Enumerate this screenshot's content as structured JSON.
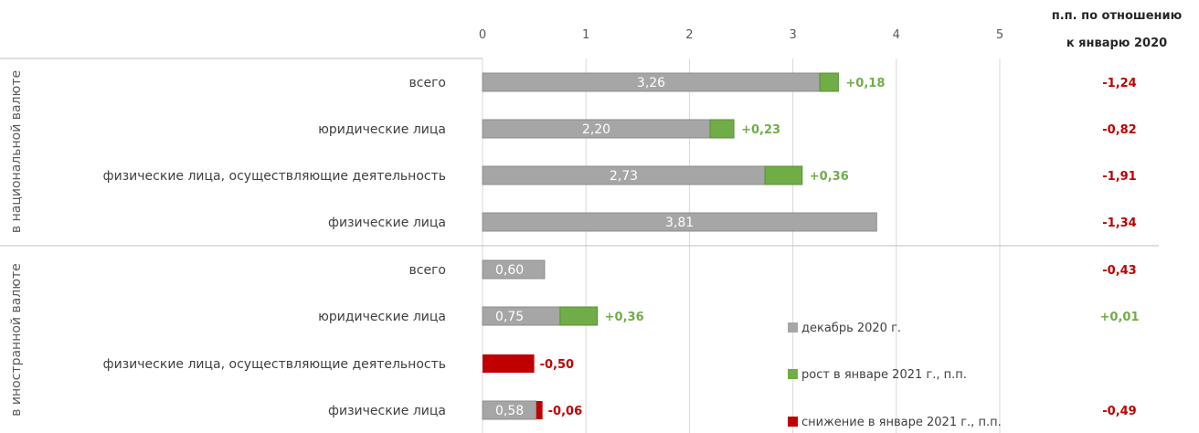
{
  "chart_data": {
    "type": "bar",
    "orientation": "horizontal",
    "stacked": true,
    "x_ticks": [
      "0",
      "1",
      "2",
      "3",
      "4",
      "5"
    ],
    "xlim": [
      0,
      5
    ],
    "grid": true,
    "right_header": [
      "п.п. по отношению",
      "к январю 2020"
    ],
    "groups": [
      {
        "label": "в национальной валюте",
        "rows": [
          {
            "category": "всего",
            "december": 3.26,
            "december_label": "3,26",
            "change": 0.18,
            "change_label": "+0,18",
            "yoy": "-1,24"
          },
          {
            "category": "юридические лица",
            "december": 2.2,
            "december_label": "2,20",
            "change": 0.23,
            "change_label": "+0,23",
            "yoy": "-0,82"
          },
          {
            "category": "физические лица, осуществляющие деятельность",
            "december": 2.73,
            "december_label": "2,73",
            "change": 0.36,
            "change_label": "+0,36",
            "yoy": "-1,91"
          },
          {
            "category": "физические лица",
            "december": 3.81,
            "december_label": "3,81",
            "change": 0,
            "change_label": "",
            "yoy": "-1,34"
          }
        ]
      },
      {
        "label": "в иностранной валюте",
        "rows": [
          {
            "category": "всего",
            "december": 0.6,
            "december_label": "0,60",
            "change": 0,
            "change_label": "",
            "yoy": "-0,43"
          },
          {
            "category": "юридические лица",
            "december": 0.75,
            "december_label": "0,75",
            "change": 0.36,
            "change_label": "+0,36",
            "yoy": "+0,01"
          },
          {
            "category": "физические лица, осуществляющие деятельность",
            "december": 0.5,
            "december_label": "",
            "change": -0.5,
            "change_label": "-0,50",
            "yoy": ""
          },
          {
            "category": "физические лица",
            "december": 0.58,
            "december_label": "0,58",
            "change": -0.06,
            "change_label": "-0,06",
            "yoy": "-0,49"
          }
        ]
      }
    ],
    "series": [
      {
        "key": "december",
        "name": "декабрь 2020 г.",
        "color": "#a6a6a6"
      },
      {
        "key": "increase",
        "name": "рост в январе 2021 г., п.п.",
        "color": "#70ad47"
      },
      {
        "key": "decrease",
        "name": "снижение в январе 2021 г., п.п.",
        "color": "#c00000"
      }
    ],
    "colors": {
      "positive": "#70ad47",
      "negative": "#c00000",
      "gridline": "#d9d9d9"
    },
    "legend_position": "bottom-right"
  }
}
